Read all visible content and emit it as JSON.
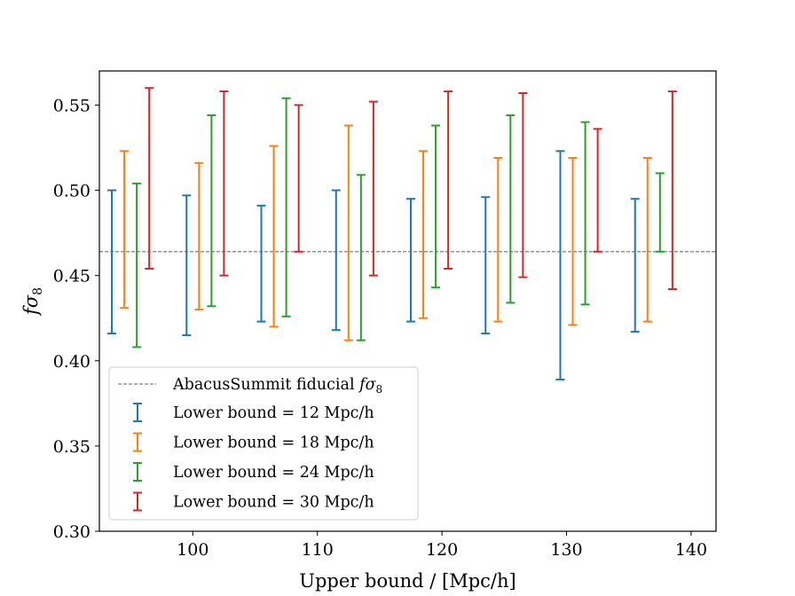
{
  "chart_data": {
    "type": "errorbar",
    "xlabel": "Upper bound / [Mpc/h]",
    "ylabel_main": "f",
    "ylabel_sub": "8",
    "ylabel_sigma": "σ",
    "xlim": [
      92.5,
      142
    ],
    "ylim": [
      0.3,
      0.57
    ],
    "xticks": [
      100,
      110,
      120,
      130,
      140
    ],
    "yticks": [
      0.3,
      0.35,
      0.4,
      0.45,
      0.5,
      0.55
    ],
    "ytick_labels": [
      "0.30",
      "0.35",
      "0.40",
      "0.45",
      "0.50",
      "0.55"
    ],
    "xtick_labels": [
      "100",
      "110",
      "120",
      "130",
      "140"
    ],
    "reference_line": {
      "y": 0.464,
      "label": "AbacusSummit fiducial",
      "label_symbol": "fσ",
      "label_sub": "8",
      "color": "#808080"
    },
    "categories": [
      95,
      101,
      107,
      113,
      119,
      125,
      131,
      137
    ],
    "offsets": [
      -1.5,
      -0.5,
      0.5,
      1.5
    ],
    "series": [
      {
        "name": "Lower bound = 12 Mpc/h",
        "color": "#1f77b4",
        "lower": [
          0.416,
          0.415,
          0.423,
          0.418,
          0.423,
          0.416,
          0.389,
          0.417
        ],
        "upper": [
          0.5,
          0.497,
          0.491,
          0.5,
          0.495,
          0.496,
          0.523,
          0.495
        ]
      },
      {
        "name": "Lower bound = 18 Mpc/h",
        "color": "#ff7f0e",
        "lower": [
          0.431,
          0.43,
          0.42,
          0.412,
          0.425,
          0.423,
          0.421,
          0.423
        ],
        "upper": [
          0.523,
          0.516,
          0.526,
          0.538,
          0.523,
          0.519,
          0.519,
          0.519
        ]
      },
      {
        "name": "Lower bound = 24 Mpc/h",
        "color": "#2ca02c",
        "lower": [
          0.408,
          0.432,
          0.426,
          0.412,
          0.443,
          0.434,
          0.433,
          0.464
        ],
        "upper": [
          0.504,
          0.544,
          0.554,
          0.509,
          0.538,
          0.544,
          0.54,
          0.51
        ]
      },
      {
        "name": "Lower bound = 30 Mpc/h",
        "color": "#d62728",
        "lower": [
          0.454,
          0.45,
          0.464,
          0.45,
          0.454,
          0.449,
          0.464,
          0.442
        ],
        "upper": [
          0.56,
          0.558,
          0.55,
          0.552,
          0.558,
          0.557,
          0.536,
          0.558
        ]
      }
    ]
  }
}
